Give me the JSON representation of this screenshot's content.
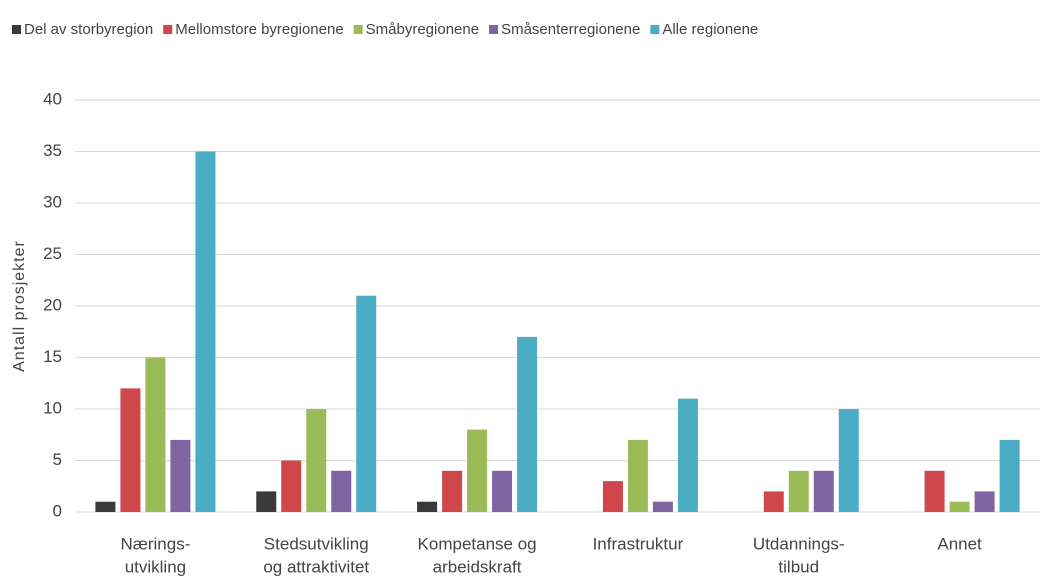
{
  "chart_data": {
    "type": "bar",
    "ylabel": "Antall prosjekter",
    "categories": [
      [
        "Nærings-",
        "utvikling"
      ],
      [
        "Stedsutvikling",
        "og attraktivitet"
      ],
      [
        "Kompetanse og",
        "arbeidskraft"
      ],
      [
        "Infrastruktur"
      ],
      [
        "Utdannings-",
        "tilbud"
      ],
      [
        "Annet"
      ]
    ],
    "series": [
      {
        "name": "Del av storbyregion",
        "color": "#3a3a3a",
        "values": [
          1,
          2,
          1,
          0,
          0,
          0
        ]
      },
      {
        "name": "Mellomstore byregionene",
        "color": "#d0474b",
        "values": [
          12,
          5,
          4,
          3,
          2,
          4
        ]
      },
      {
        "name": "Småbyregionene",
        "color": "#9bbb59",
        "values": [
          15,
          10,
          8,
          7,
          4,
          1
        ]
      },
      {
        "name": "Småsenterregionene",
        "color": "#8064a2",
        "values": [
          7,
          4,
          4,
          1,
          4,
          2
        ]
      },
      {
        "name": "Alle regionene",
        "color": "#4bacc6",
        "values": [
          35,
          21,
          17,
          11,
          10,
          7
        ]
      }
    ],
    "ylim": [
      0,
      40
    ],
    "yticks": [
      0,
      5,
      10,
      15,
      20,
      25,
      30,
      35,
      40
    ],
    "grid": true,
    "legend": "top"
  }
}
